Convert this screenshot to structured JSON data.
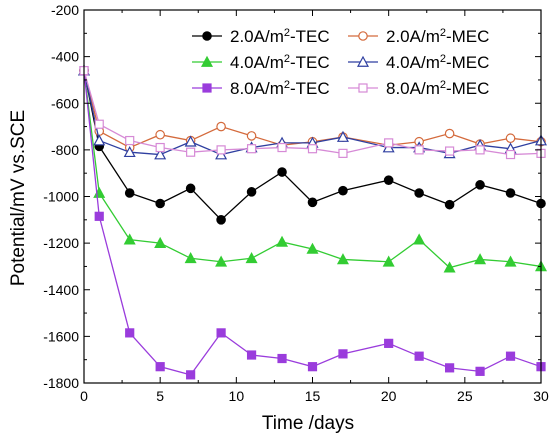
{
  "chart_data": {
    "type": "line",
    "xlabel": "Time /days",
    "ylabel": "Potential/mV vs.SCE",
    "xlim": [
      0,
      30
    ],
    "ylim": [
      -1800,
      -200
    ],
    "xticks": [
      0,
      5,
      10,
      15,
      20,
      25,
      30
    ],
    "yticks": [
      -200,
      -400,
      -600,
      -800,
      -1000,
      -1200,
      -1400,
      -1600,
      -1800
    ],
    "grid": false,
    "legend_position": "top-right",
    "series": [
      {
        "name": "2.0A/m2-TEC",
        "unit_base": "2.0A/m",
        "unit_sup": "2",
        "unit_suffix": "-TEC",
        "color": "#000000",
        "marker": "circle",
        "filled": true,
        "x": [
          0,
          1,
          3,
          5,
          7,
          9,
          11,
          13,
          15,
          17,
          20,
          22,
          24,
          26,
          28,
          30
        ],
        "y": [
          -460,
          -785,
          -985,
          -1030,
          -965,
          -1100,
          -980,
          -895,
          -1025,
          -975,
          -930,
          -985,
          -1035,
          -950,
          -985,
          -1030
        ]
      },
      {
        "name": "2.0A/m2-MEC",
        "unit_base": "2.0A/m",
        "unit_sup": "2",
        "unit_suffix": "-MEC",
        "color": "#d46a3c",
        "marker": "circle",
        "filled": false,
        "x": [
          0,
          1,
          3,
          5,
          7,
          9,
          11,
          13,
          15,
          17,
          20,
          22,
          24,
          26,
          28,
          30
        ],
        "y": [
          -460,
          -720,
          -790,
          -735,
          -760,
          -700,
          -740,
          -780,
          -765,
          -745,
          -780,
          -765,
          -730,
          -775,
          -750,
          -765
        ]
      },
      {
        "name": "4.0A/m2-TEC",
        "unit_base": "4.0A/m",
        "unit_sup": "2",
        "unit_suffix": "-TEC",
        "color": "#33cc33",
        "marker": "triangle",
        "filled": true,
        "x": [
          0,
          1,
          3,
          5,
          7,
          9,
          11,
          13,
          15,
          17,
          20,
          22,
          24,
          26,
          28,
          30
        ],
        "y": [
          -460,
          -985,
          -1185,
          -1200,
          -1265,
          -1280,
          -1265,
          -1195,
          -1225,
          -1270,
          -1280,
          -1185,
          -1305,
          -1270,
          -1280,
          -1300
        ]
      },
      {
        "name": "4.0A/m2-MEC",
        "unit_base": "4.0A/m",
        "unit_sup": "2",
        "unit_suffix": "-MEC",
        "color": "#2f3fa0",
        "marker": "triangle",
        "filled": false,
        "x": [
          0,
          1,
          3,
          5,
          7,
          9,
          11,
          13,
          15,
          17,
          20,
          22,
          24,
          26,
          28,
          30
        ],
        "y": [
          -460,
          -760,
          -810,
          -820,
          -765,
          -820,
          -790,
          -770,
          -770,
          -745,
          -790,
          -790,
          -815,
          -780,
          -795,
          -760
        ]
      },
      {
        "name": "8.0A/m2-TEC",
        "unit_base": "8.0A/m",
        "unit_sup": "2",
        "unit_suffix": "-TEC",
        "color": "#9a3cdc",
        "marker": "square",
        "filled": true,
        "x": [
          0,
          1,
          3,
          5,
          7,
          9,
          11,
          13,
          15,
          17,
          20,
          22,
          24,
          26,
          28,
          30
        ],
        "y": [
          -460,
          -1085,
          -1585,
          -1730,
          -1765,
          -1585,
          -1680,
          -1695,
          -1730,
          -1675,
          -1630,
          -1685,
          -1735,
          -1750,
          -1685,
          -1730
        ]
      },
      {
        "name": "8.0A/m2-MEC",
        "unit_base": "8.0A/m",
        "unit_sup": "2",
        "unit_suffix": "-MEC",
        "color": "#d68ad6",
        "marker": "square",
        "filled": false,
        "x": [
          0,
          1,
          3,
          5,
          7,
          9,
          11,
          13,
          15,
          17,
          20,
          22,
          24,
          26,
          28,
          30
        ],
        "y": [
          -460,
          -690,
          -760,
          -790,
          -810,
          -800,
          -795,
          -790,
          -795,
          -815,
          -770,
          -800,
          -805,
          -800,
          -820,
          -815
        ]
      }
    ]
  }
}
